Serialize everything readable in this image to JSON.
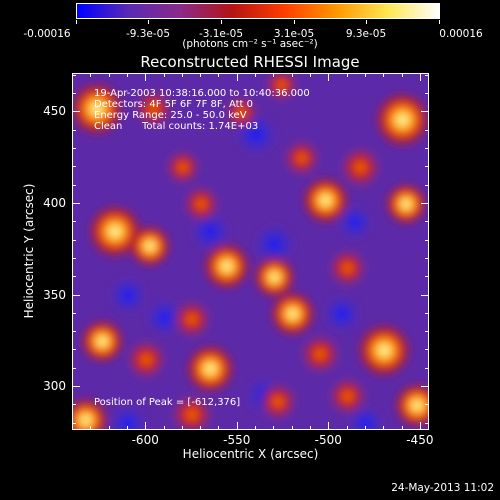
{
  "chart_data": {
    "type": "heatmap",
    "title": "Reconstructed RHESSI Image",
    "xlabel": "Heliocentric X (arcsec)",
    "ylabel": "Heliocentric Y (arcsec)",
    "xlim": [
      -640,
      -445
    ],
    "ylim": [
      276,
      471
    ],
    "xticks": [
      -600,
      -550,
      -500,
      -450
    ],
    "yticks": [
      300,
      350,
      400,
      450
    ],
    "colorbar": {
      "ticks": [
        "-0.00016",
        "-9.3e-05",
        "-3.1e-05",
        "3.1e-05",
        "9.3e-05",
        "0.00016"
      ],
      "tick_values": [
        -0.00016,
        -9.3e-05,
        -3.1e-05,
        3.1e-05,
        9.3e-05,
        0.00016
      ],
      "units": "(photons cm⁻² s⁻¹ asec⁻²)",
      "colormap": [
        "#0000ff",
        "#5a2ab4",
        "#8a2a8a",
        "#b41414",
        "#ff3c00",
        "#ff9600",
        "#ffe650",
        "#ffffff"
      ]
    },
    "annotations": {
      "time_range": "19-Apr-2003 10:38:16.000 to 10:40:36.000",
      "detectors": "Detectors: 4F 5F 6F 7F 8F, Att 0",
      "energy": "Energy Range: 25.0 - 50.0 keV",
      "method": "Clean",
      "total_counts": "Total counts: 1.74E+03",
      "peak": "Position of Peak = [-612,376]"
    },
    "sources": [
      {
        "x": -627,
        "y": 452,
        "level": 0.95
      },
      {
        "x": -617,
        "y": 385,
        "level": 0.95
      },
      {
        "x": -598,
        "y": 377,
        "level": 0.6
      },
      {
        "x": -596,
        "y": 452,
        "level": 0.45
      },
      {
        "x": -580,
        "y": 420,
        "level": 0.35
      },
      {
        "x": -570,
        "y": 400,
        "level": 0.4
      },
      {
        "x": -556,
        "y": 366,
        "level": 0.75
      },
      {
        "x": -575,
        "y": 337,
        "level": 0.45
      },
      {
        "x": -565,
        "y": 310,
        "level": 0.8
      },
      {
        "x": -600,
        "y": 315,
        "level": 0.5
      },
      {
        "x": -624,
        "y": 325,
        "level": 0.65
      },
      {
        "x": -633,
        "y": 282,
        "level": 0.7
      },
      {
        "x": -575,
        "y": 285,
        "level": 0.55
      },
      {
        "x": -530,
        "y": 360,
        "level": 0.6
      },
      {
        "x": -520,
        "y": 340,
        "level": 0.7
      },
      {
        "x": -528,
        "y": 292,
        "level": 0.45
      },
      {
        "x": -502,
        "y": 402,
        "level": 0.75
      },
      {
        "x": -515,
        "y": 425,
        "level": 0.4
      },
      {
        "x": -460,
        "y": 446,
        "level": 1.0
      },
      {
        "x": -483,
        "y": 420,
        "level": 0.55
      },
      {
        "x": -458,
        "y": 400,
        "level": 0.6
      },
      {
        "x": -490,
        "y": 365,
        "level": 0.45
      },
      {
        "x": -470,
        "y": 320,
        "level": 0.95
      },
      {
        "x": -452,
        "y": 290,
        "level": 0.7
      },
      {
        "x": -490,
        "y": 295,
        "level": 0.45
      },
      {
        "x": -505,
        "y": 318,
        "level": 0.5
      },
      {
        "x": -548,
        "y": 450,
        "level": 0.3
      },
      {
        "x": -526,
        "y": 465,
        "level": 0.3
      }
    ],
    "minima": [
      {
        "x": -540,
        "y": 438,
        "level": -0.9
      },
      {
        "x": -530,
        "y": 378,
        "level": -0.8
      },
      {
        "x": -565,
        "y": 385,
        "level": -0.7
      },
      {
        "x": -610,
        "y": 350,
        "level": -0.6
      },
      {
        "x": -590,
        "y": 338,
        "level": -0.6
      },
      {
        "x": -610,
        "y": 280,
        "level": -0.6
      },
      {
        "x": -535,
        "y": 295,
        "level": -0.7
      },
      {
        "x": -493,
        "y": 340,
        "level": -0.6
      },
      {
        "x": -486,
        "y": 390,
        "level": -0.5
      },
      {
        "x": -480,
        "y": 280,
        "level": -0.5
      }
    ]
  },
  "footer": {
    "timestamp": "24-May-2013 11:02"
  }
}
